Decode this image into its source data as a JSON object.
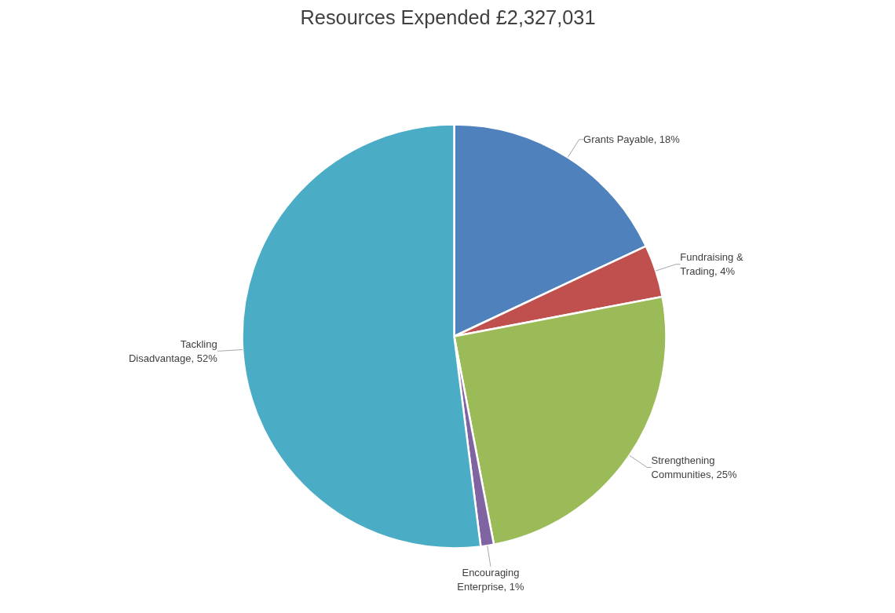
{
  "chart_data": {
    "type": "pie",
    "title": "Resources Expended £2,327,031",
    "categories": [
      "Grants Payable",
      "Fundraising & Trading",
      "Strengthening Communities",
      "Encouraging Enterprise",
      "Tackling Disadvantage"
    ],
    "values": [
      18,
      4,
      25,
      1,
      52
    ],
    "colors": [
      "#4f81bd",
      "#c0504d",
      "#9bbb59",
      "#8064a2",
      "#4bacc6"
    ],
    "value_labels": [
      "18%",
      "4%",
      "25%",
      "1%",
      "52%"
    ]
  }
}
